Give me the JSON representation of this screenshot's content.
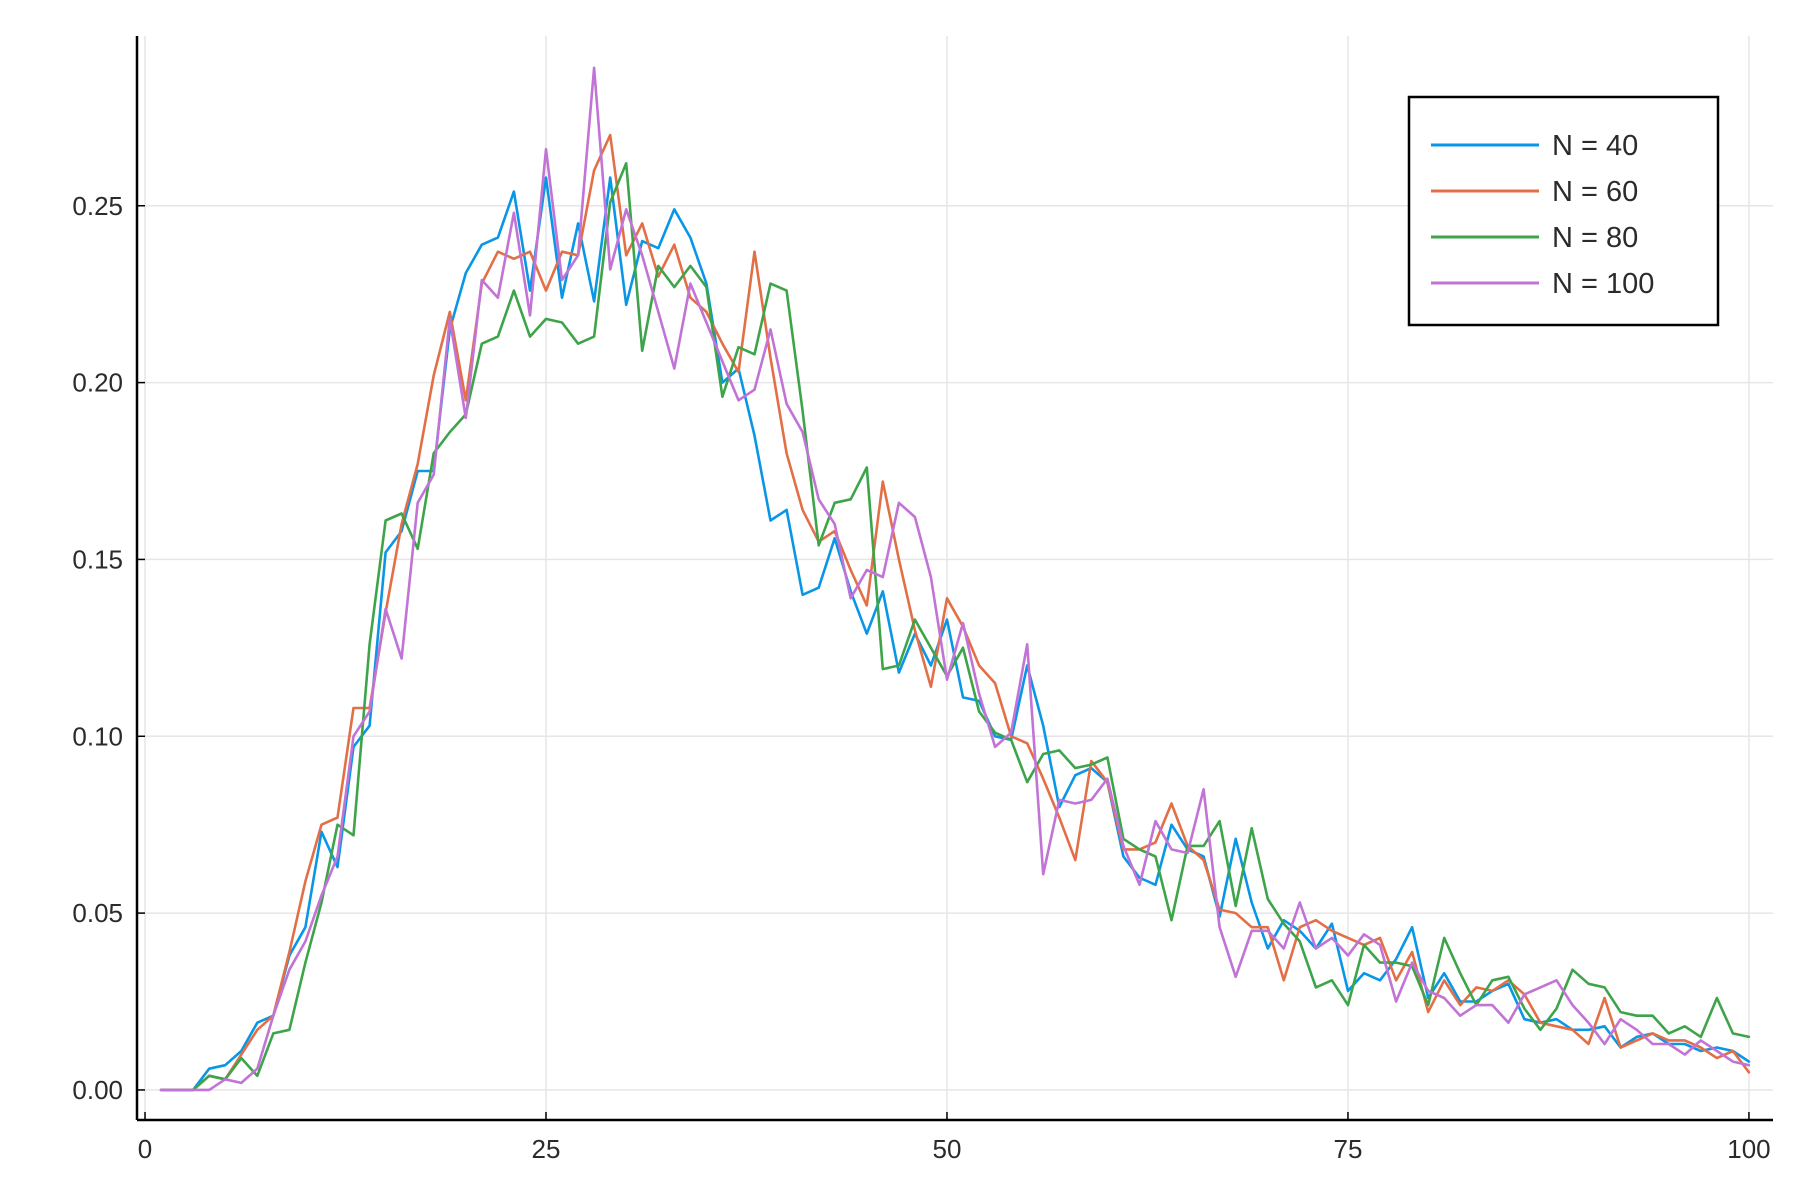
{
  "chart_data": {
    "type": "line",
    "title": "",
    "xlabel": "",
    "ylabel": "",
    "xlim": [
      -0.5,
      101.5
    ],
    "ylim": [
      -0.0085,
      0.298
    ],
    "x_ticks": [
      0,
      25,
      50,
      75,
      100
    ],
    "x_tick_labels": [
      "0",
      "25",
      "50",
      "75",
      "100"
    ],
    "y_ticks": [
      0.0,
      0.05,
      0.1,
      0.15,
      0.2,
      0.25
    ],
    "y_tick_labels": [
      "0.00",
      "0.05",
      "0.10",
      "0.15",
      "0.20",
      "0.25"
    ],
    "grid": true,
    "legend_position": "top-right",
    "x": [
      1,
      2,
      3,
      4,
      5,
      6,
      7,
      8,
      9,
      10,
      11,
      12,
      13,
      14,
      15,
      16,
      17,
      18,
      19,
      20,
      21,
      22,
      23,
      24,
      25,
      26,
      27,
      28,
      29,
      30,
      31,
      32,
      33,
      34,
      35,
      36,
      37,
      38,
      39,
      40,
      41,
      42,
      43,
      44,
      45,
      46,
      47,
      48,
      49,
      50,
      51,
      52,
      53,
      54,
      55,
      56,
      57,
      58,
      59,
      60,
      61,
      62,
      63,
      64,
      65,
      66,
      67,
      68,
      69,
      70,
      71,
      72,
      73,
      74,
      75,
      76,
      77,
      78,
      79,
      80,
      81,
      82,
      83,
      84,
      85,
      86,
      87,
      88,
      89,
      90,
      91,
      92,
      93,
      94,
      95,
      96,
      97,
      98,
      99,
      100
    ],
    "series": [
      {
        "name": "N = 40",
        "color": "#0a96e6",
        "values": [
          0.0,
          0.0,
          0.0,
          0.006,
          0.007,
          0.011,
          0.019,
          0.021,
          0.038,
          0.046,
          0.073,
          0.063,
          0.097,
          0.103,
          0.152,
          0.158,
          0.175,
          0.175,
          0.215,
          0.231,
          0.239,
          0.241,
          0.254,
          0.226,
          0.258,
          0.224,
          0.245,
          0.223,
          0.258,
          0.222,
          0.24,
          0.238,
          0.249,
          0.241,
          0.228,
          0.2,
          0.204,
          0.185,
          0.161,
          0.164,
          0.14,
          0.142,
          0.156,
          0.141,
          0.129,
          0.141,
          0.118,
          0.129,
          0.12,
          0.133,
          0.111,
          0.11,
          0.1,
          0.099,
          0.12,
          0.103,
          0.08,
          0.089,
          0.091,
          0.087,
          0.066,
          0.06,
          0.058,
          0.075,
          0.068,
          0.066,
          0.049,
          0.071,
          0.053,
          0.04,
          0.048,
          0.045,
          0.04,
          0.047,
          0.028,
          0.033,
          0.031,
          0.037,
          0.046,
          0.026,
          0.033,
          0.025,
          0.025,
          0.028,
          0.03,
          0.02,
          0.019,
          0.02,
          0.017,
          0.017,
          0.018,
          0.012,
          0.015,
          0.016,
          0.013,
          0.013,
          0.011,
          0.012,
          0.011,
          0.008
        ]
      },
      {
        "name": "N = 60",
        "color": "#e26f46",
        "values": [
          0.0,
          0.0,
          0.0,
          0.004,
          0.003,
          0.01,
          0.017,
          0.021,
          0.039,
          0.059,
          0.075,
          0.077,
          0.108,
          0.108,
          0.135,
          0.16,
          0.177,
          0.202,
          0.22,
          0.195,
          0.228,
          0.237,
          0.235,
          0.237,
          0.226,
          0.237,
          0.236,
          0.26,
          0.27,
          0.236,
          0.245,
          0.23,
          0.239,
          0.224,
          0.22,
          0.211,
          0.203,
          0.237,
          0.207,
          0.18,
          0.164,
          0.155,
          0.158,
          0.147,
          0.137,
          0.172,
          0.15,
          0.13,
          0.114,
          0.139,
          0.131,
          0.12,
          0.115,
          0.1,
          0.098,
          0.088,
          0.077,
          0.065,
          0.093,
          0.087,
          0.068,
          0.068,
          0.07,
          0.081,
          0.069,
          0.065,
          0.051,
          0.05,
          0.046,
          0.046,
          0.031,
          0.046,
          0.048,
          0.045,
          0.043,
          0.041,
          0.043,
          0.031,
          0.039,
          0.022,
          0.031,
          0.024,
          0.029,
          0.028,
          0.031,
          0.027,
          0.019,
          0.018,
          0.017,
          0.013,
          0.026,
          0.012,
          0.014,
          0.016,
          0.014,
          0.014,
          0.012,
          0.009,
          0.011,
          0.005
        ]
      },
      {
        "name": "N = 80",
        "color": "#3ea44a",
        "values": [
          0.0,
          0.0,
          0.0,
          0.004,
          0.003,
          0.009,
          0.004,
          0.016,
          0.017,
          0.036,
          0.053,
          0.075,
          0.072,
          0.126,
          0.161,
          0.163,
          0.153,
          0.18,
          0.186,
          0.191,
          0.211,
          0.213,
          0.226,
          0.213,
          0.218,
          0.217,
          0.211,
          0.213,
          0.251,
          0.262,
          0.209,
          0.233,
          0.227,
          0.233,
          0.227,
          0.196,
          0.21,
          0.208,
          0.228,
          0.226,
          0.192,
          0.154,
          0.166,
          0.167,
          0.176,
          0.119,
          0.12,
          0.133,
          0.125,
          0.117,
          0.125,
          0.107,
          0.101,
          0.099,
          0.087,
          0.095,
          0.096,
          0.091,
          0.092,
          0.094,
          0.071,
          0.068,
          0.066,
          0.048,
          0.069,
          0.069,
          0.076,
          0.052,
          0.074,
          0.054,
          0.047,
          0.042,
          0.029,
          0.031,
          0.024,
          0.041,
          0.036,
          0.036,
          0.035,
          0.024,
          0.043,
          0.033,
          0.024,
          0.031,
          0.032,
          0.023,
          0.017,
          0.023,
          0.034,
          0.03,
          0.029,
          0.022,
          0.021,
          0.021,
          0.016,
          0.018,
          0.015,
          0.026,
          0.016,
          0.015
        ]
      },
      {
        "name": "N = 100",
        "color": "#c273d6",
        "values": [
          0.0,
          0.0,
          0.0,
          0.0,
          0.003,
          0.002,
          0.006,
          0.021,
          0.034,
          0.042,
          0.055,
          0.066,
          0.1,
          0.107,
          0.136,
          0.122,
          0.166,
          0.174,
          0.218,
          0.19,
          0.229,
          0.224,
          0.248,
          0.219,
          0.266,
          0.229,
          0.236,
          0.289,
          0.232,
          0.249,
          0.236,
          0.22,
          0.204,
          0.228,
          0.217,
          0.206,
          0.195,
          0.198,
          0.215,
          0.194,
          0.186,
          0.167,
          0.16,
          0.139,
          0.147,
          0.145,
          0.166,
          0.162,
          0.145,
          0.116,
          0.132,
          0.112,
          0.097,
          0.101,
          0.126,
          0.061,
          0.082,
          0.081,
          0.082,
          0.088,
          0.069,
          0.058,
          0.076,
          0.068,
          0.067,
          0.085,
          0.046,
          0.032,
          0.045,
          0.045,
          0.04,
          0.053,
          0.04,
          0.043,
          0.038,
          0.044,
          0.041,
          0.025,
          0.036,
          0.028,
          0.026,
          0.021,
          0.024,
          0.024,
          0.019,
          0.027,
          0.029,
          0.031,
          0.024,
          0.019,
          0.013,
          0.02,
          0.017,
          0.013,
          0.013,
          0.01,
          0.014,
          0.011,
          0.008,
          0.007
        ]
      }
    ]
  }
}
